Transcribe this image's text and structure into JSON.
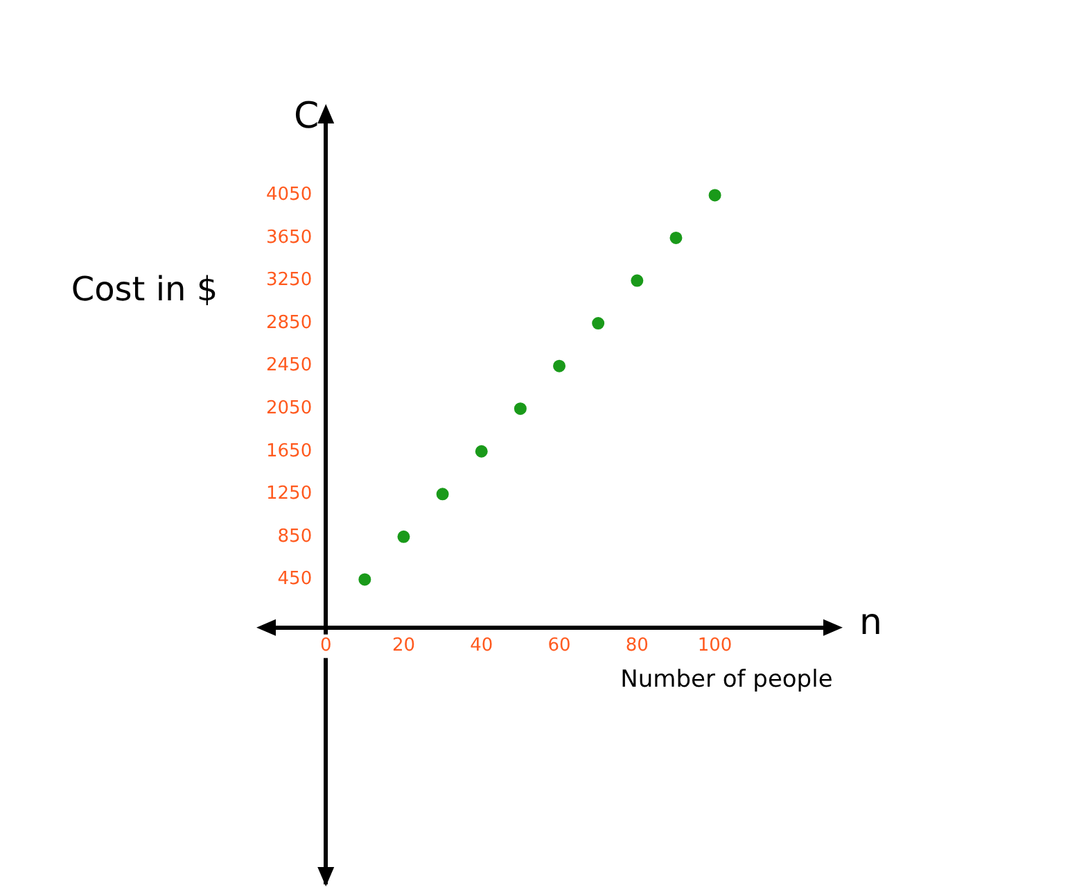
{
  "chart_data": {
    "type": "scatter",
    "xlabel": "Number of people",
    "ylabel": "Cost in $",
    "annotations": [
      "C",
      "n"
    ],
    "x": [
      10,
      20,
      30,
      40,
      50,
      60,
      70,
      80,
      90,
      100
    ],
    "series": [
      {
        "color": "#1a9a1a",
        "values": [
          450,
          850,
          1250,
          1650,
          2050,
          2450,
          2850,
          3250,
          3650,
          4050
        ]
      }
    ],
    "xlim": [
      -15,
      130
    ],
    "xticks": [
      0,
      20,
      40,
      60,
      80,
      100
    ],
    "ylim": [
      -2400,
      4800
    ],
    "yticks": [
      450,
      850,
      1250,
      1650,
      2050,
      2450,
      2850,
      3250,
      3650,
      4050
    ],
    "grid": false,
    "legend": false,
    "marker": "circle"
  }
}
